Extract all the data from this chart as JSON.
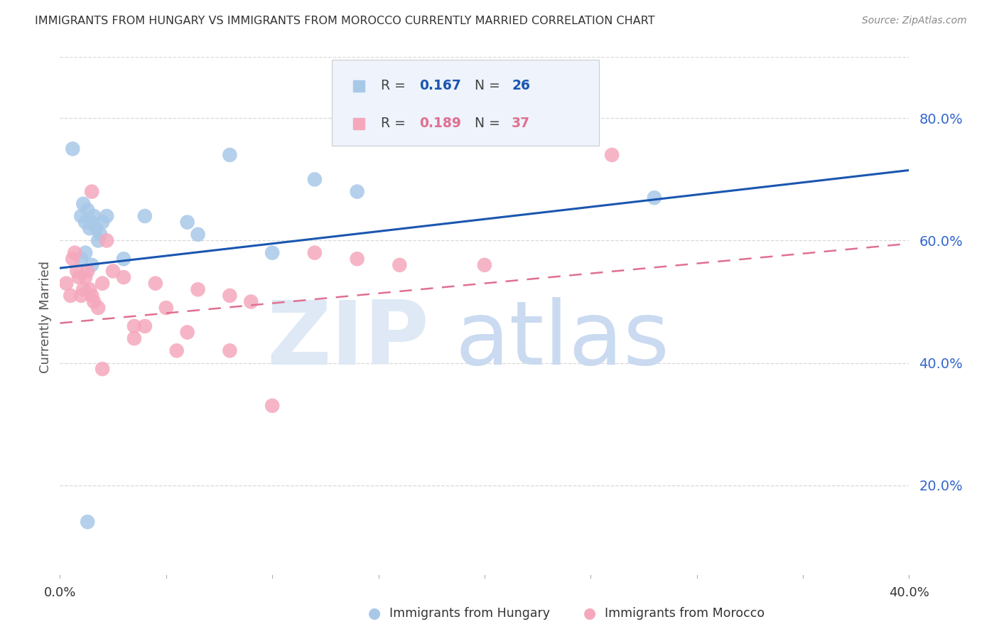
{
  "title": "IMMIGRANTS FROM HUNGARY VS IMMIGRANTS FROM MOROCCO CURRENTLY MARRIED CORRELATION CHART",
  "source": "Source: ZipAtlas.com",
  "ylabel": "Currently Married",
  "right_ytick_vals": [
    0.8,
    0.6,
    0.4,
    0.2
  ],
  "right_ytick_labels": [
    "80.0%",
    "60.0%",
    "40.0%",
    "20.0%"
  ],
  "xlim": [
    0.0,
    0.4
  ],
  "ylim": [
    0.05,
    0.9
  ],
  "hungary_R": "0.167",
  "hungary_N": "26",
  "morocco_R": "0.189",
  "morocco_N": "37",
  "hungary_scatter_color": "#a8c8e8",
  "morocco_scatter_color": "#f5a8bc",
  "hungary_line_color": "#1a56b0",
  "morocco_line_color": "#e07090",
  "hungary_x": [
    0.006,
    0.01,
    0.011,
    0.012,
    0.013,
    0.014,
    0.015,
    0.016,
    0.017,
    0.018,
    0.019,
    0.02,
    0.022,
    0.03,
    0.04,
    0.06,
    0.065,
    0.08,
    0.1,
    0.12,
    0.14,
    0.28,
    0.015,
    0.01,
    0.012,
    0.013
  ],
  "hungary_y": [
    0.75,
    0.64,
    0.66,
    0.63,
    0.65,
    0.62,
    0.63,
    0.64,
    0.62,
    0.6,
    0.61,
    0.63,
    0.64,
    0.57,
    0.64,
    0.63,
    0.61,
    0.74,
    0.58,
    0.7,
    0.68,
    0.67,
    0.56,
    0.57,
    0.58,
    0.14
  ],
  "morocco_x": [
    0.003,
    0.005,
    0.006,
    0.007,
    0.008,
    0.009,
    0.01,
    0.011,
    0.012,
    0.013,
    0.014,
    0.015,
    0.016,
    0.018,
    0.02,
    0.022,
    0.025,
    0.03,
    0.035,
    0.04,
    0.045,
    0.05,
    0.06,
    0.065,
    0.08,
    0.09,
    0.1,
    0.12,
    0.14,
    0.16,
    0.2,
    0.26,
    0.02,
    0.055,
    0.035,
    0.08,
    0.015
  ],
  "morocco_y": [
    0.53,
    0.51,
    0.57,
    0.58,
    0.55,
    0.54,
    0.51,
    0.52,
    0.54,
    0.55,
    0.52,
    0.51,
    0.5,
    0.49,
    0.53,
    0.6,
    0.55,
    0.54,
    0.46,
    0.46,
    0.53,
    0.49,
    0.45,
    0.52,
    0.51,
    0.5,
    0.33,
    0.58,
    0.57,
    0.56,
    0.56,
    0.74,
    0.39,
    0.42,
    0.44,
    0.42,
    0.68
  ],
  "hungary_trend_x0": 0.0,
  "hungary_trend_x1": 0.4,
  "hungary_trend_y0": 0.555,
  "hungary_trend_y1": 0.715,
  "morocco_trend_x0": 0.0,
  "morocco_trend_x1": 0.4,
  "morocco_trend_y0": 0.465,
  "morocco_trend_y1": 0.595,
  "background_color": "#ffffff",
  "grid_color": "#d8d8d8",
  "right_axis_color": "#3366cc",
  "legend_bg": "#eef3fc",
  "legend_border": "#cccccc"
}
